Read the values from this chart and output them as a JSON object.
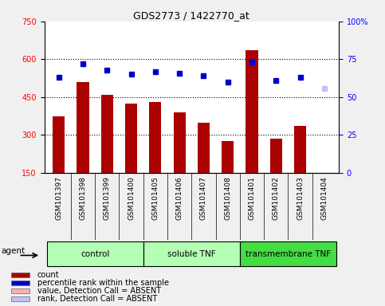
{
  "title": "GDS2773 / 1422770_at",
  "samples": [
    "GSM101397",
    "GSM101398",
    "GSM101399",
    "GSM101400",
    "GSM101405",
    "GSM101406",
    "GSM101407",
    "GSM101408",
    "GSM101401",
    "GSM101402",
    "GSM101403",
    "GSM101404"
  ],
  "counts": [
    375,
    510,
    460,
    425,
    430,
    390,
    350,
    275,
    635,
    285,
    335,
    145
  ],
  "counts_absent": [
    false,
    false,
    false,
    false,
    false,
    false,
    false,
    false,
    false,
    false,
    false,
    true
  ],
  "percentile_ranks": [
    63,
    72,
    68,
    65,
    67,
    66,
    64,
    60,
    73,
    61,
    63,
    56
  ],
  "ranks_absent": [
    false,
    false,
    false,
    false,
    false,
    false,
    false,
    false,
    false,
    false,
    false,
    true
  ],
  "groups": [
    {
      "label": "control",
      "start": 0,
      "end": 3
    },
    {
      "label": "soluble TNF",
      "start": 4,
      "end": 7
    },
    {
      "label": "transmembrane TNF",
      "start": 8,
      "end": 11
    }
  ],
  "group_colors": [
    "#b3ffb3",
    "#b3ffb3",
    "#44dd44"
  ],
  "bar_color": "#aa0000",
  "dot_color": "#0000cc",
  "absent_bar_color": "#ffb0b0",
  "absent_dot_color": "#c0c0ff",
  "ylim_left": [
    150,
    750
  ],
  "ylim_right": [
    0,
    100
  ],
  "yticks_left": [
    150,
    300,
    450,
    600,
    750
  ],
  "yticks_right": [
    0,
    25,
    50,
    75,
    100
  ],
  "grid_values": [
    300,
    450,
    600
  ],
  "sample_area_color": "#d0d0d0",
  "plot_bg_color": "#ffffff",
  "fig_bg_color": "#f0f0f0",
  "legend_items": [
    {
      "label": "count",
      "color": "#aa0000"
    },
    {
      "label": "percentile rank within the sample",
      "color": "#0000cc"
    },
    {
      "label": "value, Detection Call = ABSENT",
      "color": "#ffb0b0"
    },
    {
      "label": "rank, Detection Call = ABSENT",
      "color": "#c0c0ff"
    }
  ]
}
